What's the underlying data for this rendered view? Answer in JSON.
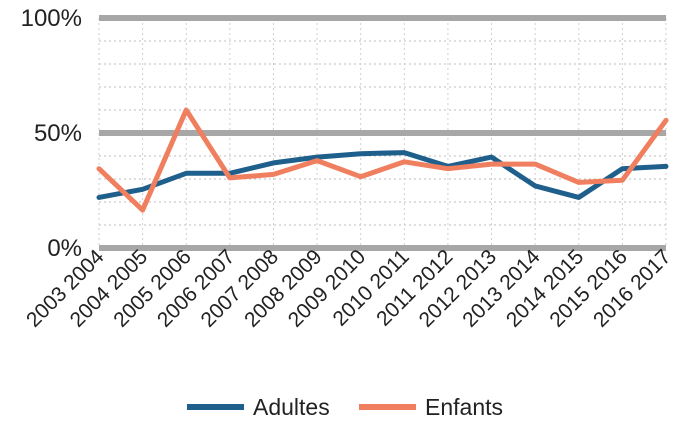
{
  "chart_data": {
    "type": "line",
    "categories": [
      "2003 2004",
      "2004 2005",
      "2005 2006",
      "2006 2007",
      "2007 2008",
      "2008 2009",
      "2009 2010",
      "2010 2011",
      "2011 2012",
      "2012 2013",
      "2013 2014",
      "2014 2015",
      "2015 2016",
      "2016 2017"
    ],
    "series": [
      {
        "name": "Adultes",
        "color": "#1f5f8b",
        "values": [
          22,
          25.5,
          32.5,
          32.5,
          37,
          39.5,
          41,
          41.5,
          35.5,
          39.5,
          27,
          22,
          34.5,
          35.5
        ]
      },
      {
        "name": "Enfants",
        "color": "#f07f5f",
        "values": [
          34.5,
          16.5,
          60,
          30.5,
          32,
          38,
          31,
          37.5,
          34.5,
          36.5,
          36.5,
          28.5,
          29.5,
          55.5
        ]
      }
    ],
    "yticks": [
      {
        "value": 0,
        "label": "0%"
      },
      {
        "value": 50,
        "label": "50%"
      },
      {
        "value": 100,
        "label": "100%"
      }
    ],
    "ylim": [
      0,
      100
    ],
    "grid": true,
    "legend": "bottom",
    "title": "",
    "xlabel": "",
    "ylabel": ""
  }
}
